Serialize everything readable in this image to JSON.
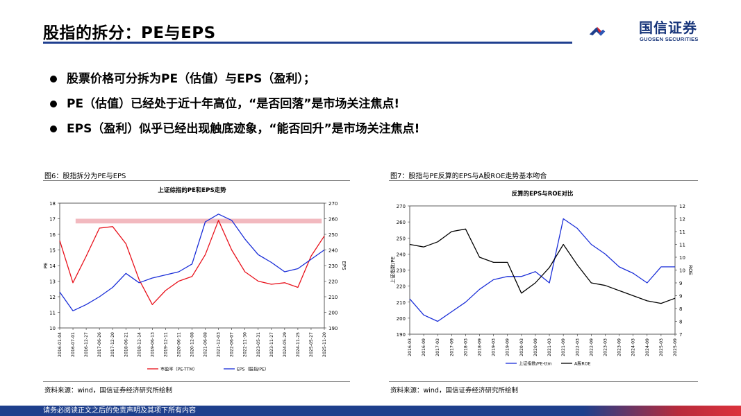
{
  "header": {
    "title": "股指的拆分：PE与EPS",
    "logo_cn": "国信证券",
    "logo_en": "GUOSEN SECURITIES"
  },
  "bullets": [
    "股票价格可分拆为PE（估值）与EPS（盈利）；",
    "PE（估值）已经处于近十年高位，“是否回落”是市场关注焦点!",
    "EPS（盈利）似乎已经出现触底迹象，“能否回升”是市场关注焦点!"
  ],
  "figure_left": {
    "caption": "图6：股指拆分为PE与EPS",
    "source": "资料来源：wind，国信证券经济研究所绘制"
  },
  "figure_right": {
    "caption": "图7：股指与PE反算的EPS与A股ROE走势基本吻合",
    "source": "资料来源：wind，国信证券经济研究所绘制"
  },
  "footer": {
    "text": "请务必阅读正文之后的免责声明及其项下所有内容"
  },
  "colors": {
    "red": "#e8101a",
    "blue": "#1a2ed8",
    "band": "#f2b9bf",
    "navy": "#1e3f8c"
  },
  "chart_data": [
    {
      "type": "line",
      "title": "上证综指的PE和EPS走势",
      "ylabel": "PE",
      "y2label": "EPS",
      "ylim": [
        10,
        18
      ],
      "y2lim": [
        190,
        270
      ],
      "yticks": [
        "10",
        "11",
        "12",
        "13",
        "14",
        "15",
        "16",
        "17",
        "18"
      ],
      "y2ticks": [
        "190",
        "200",
        "210",
        "220",
        "230",
        "240",
        "250",
        "260",
        "270"
      ],
      "x": [
        "2016-01-04",
        "2016-07-01",
        "2016-12-27",
        "2017-06-26",
        "2017-12-20",
        "2018-06-21",
        "2018-12-14",
        "2019-06-13",
        "2019-12-11",
        "2020-06-11",
        "2020-12-08",
        "2021-06-08",
        "2021-12-03",
        "2022-06-07",
        "2022-11-30",
        "2023-05-31",
        "2023-11-27",
        "2024-05-29",
        "2024-11-25",
        "2025-05-27",
        "2025-11-20"
      ],
      "series": [
        {
          "name": "市盈率（PE-TTM）",
          "axis": "left",
          "color": "#e8101a",
          "values": [
            15.6,
            12.9,
            14.6,
            16.4,
            16.5,
            15.4,
            13.1,
            11.5,
            12.4,
            13.0,
            13.3,
            14.7,
            16.9,
            15.0,
            13.6,
            13.0,
            12.8,
            12.9,
            12.6,
            14.6,
            15.9
          ]
        },
        {
          "name": "EPS（股指/PE）",
          "axis": "right",
          "color": "#1a2ed8",
          "values": [
            213,
            201,
            205,
            210,
            216,
            225,
            219,
            222,
            224,
            226,
            231,
            258,
            263,
            259,
            247,
            237,
            232,
            226,
            228,
            234,
            240
          ]
        }
      ],
      "annotations": [
        {
          "type": "band",
          "y_from": 16.7,
          "y_to": 17.0,
          "axis": "left"
        }
      ]
    },
    {
      "type": "line",
      "title": "反算的EPS与ROE对比",
      "ylabel": "上证指数/PE",
      "y2label": "ROE",
      "ylim": [
        190,
        270
      ],
      "y2lim": [
        7,
        12
      ],
      "yticks": [
        "190",
        "200",
        "210",
        "220",
        "230",
        "240",
        "250",
        "260",
        "270"
      ],
      "y2ticks": [
        "7",
        "8",
        "8",
        "9",
        "9",
        "10",
        "10",
        "11",
        "11",
        "12",
        "12"
      ],
      "x": [
        "2016-03",
        "2016-09",
        "2017-03",
        "2017-09",
        "2018-03",
        "2018-09",
        "2019-03",
        "2019-09",
        "2020-03",
        "2020-09",
        "2021-03",
        "2021-09",
        "2022-03",
        "2022-09",
        "2023-03",
        "2023-09",
        "2024-03",
        "2024-09",
        "2025-03",
        "2025-09"
      ],
      "series": [
        {
          "name": "上证指数/PE-ttm",
          "axis": "left",
          "color": "#1a2ed8",
          "values": [
            212,
            202,
            198,
            204,
            210,
            218,
            224,
            226,
            226,
            229,
            222,
            262,
            256,
            246,
            240,
            232,
            228,
            222,
            232,
            232
          ]
        },
        {
          "name": "A股ROE",
          "axis": "right",
          "color": "#000000",
          "values": [
            10.5,
            10.4,
            10.6,
            11.0,
            11.1,
            10.0,
            9.8,
            9.8,
            8.6,
            9.0,
            9.6,
            10.5,
            9.7,
            9.0,
            8.9,
            8.7,
            8.5,
            8.3,
            8.2,
            8.4
          ]
        }
      ]
    }
  ]
}
